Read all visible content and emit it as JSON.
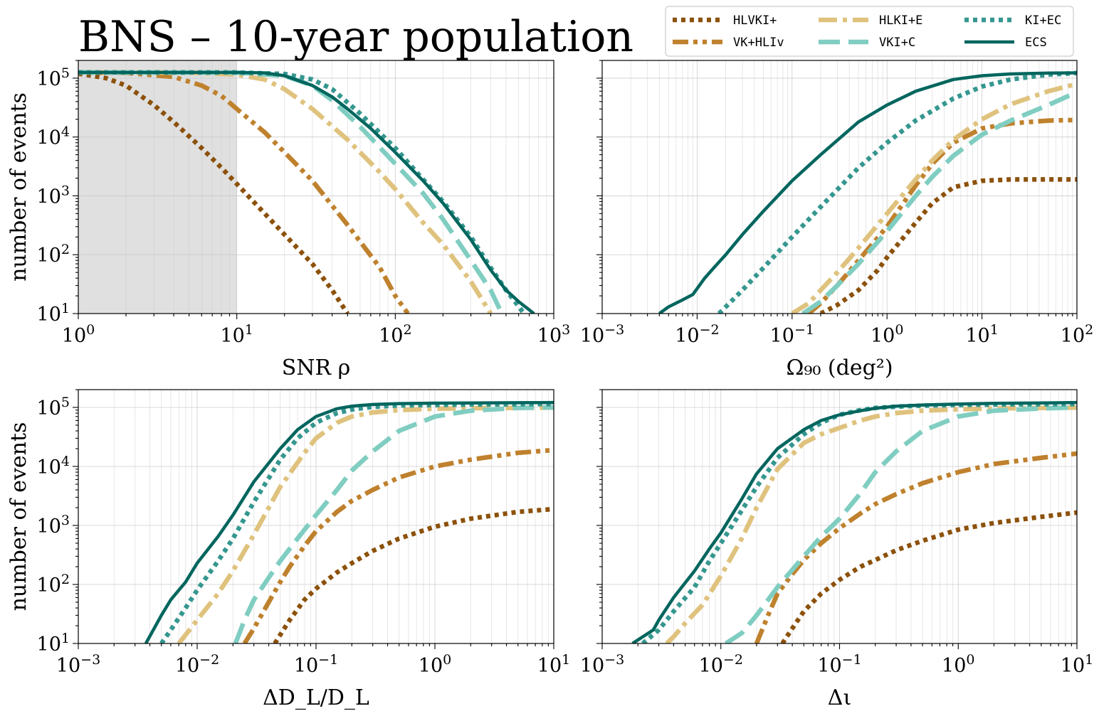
{
  "title": "BNS – 10-year population",
  "colors": {
    "HLVKI+": "#8c510a",
    "VK+HLIv": "#bf812d",
    "HLKI+E": "#dfc27d",
    "VKI+C": "#80cdc1",
    "KI+EC": "#35978f",
    "ECS": "#01665e"
  },
  "legend": [
    {
      "name": "HLVKI+",
      "color": "#8c510a",
      "style": "dotted"
    },
    {
      "name": "HLKI+E",
      "color": "#dfc27d",
      "style": "dashdot"
    },
    {
      "name": "KI+EC",
      "color": "#35978f",
      "style": "dotted"
    },
    {
      "name": "VK+HLIv",
      "color": "#bf812d",
      "style": "dashdotdot"
    },
    {
      "name": "VKI+C",
      "color": "#80cdc1",
      "style": "dashed"
    },
    {
      "name": "ECS",
      "color": "#01665e",
      "style": "solid"
    }
  ],
  "chart_data": [
    {
      "type": "line",
      "panel": "top-left",
      "xlabel": "SNR ρ",
      "ylabel": "number of events",
      "xscale": "log",
      "yscale": "log",
      "xlim": [
        1,
        1000
      ],
      "ylim": [
        10,
        200000
      ],
      "xticks": [
        "10^0",
        "10^1",
        "10^2",
        "10^3"
      ],
      "yticks": [
        "10^1",
        "10^2",
        "10^3",
        "10^4",
        "10^5"
      ],
      "shaded_region": {
        "x": [
          1,
          10
        ]
      },
      "grid": true,
      "series": [
        {
          "name": "HLVKI+",
          "x": [
            1,
            1.5,
            2,
            3,
            4,
            6,
            8,
            10,
            15,
            20,
            30,
            40,
            50
          ],
          "y": [
            120000,
            100000,
            75000,
            35000,
            18000,
            6500,
            3000,
            1600,
            500,
            220,
            70,
            25,
            10
          ]
        },
        {
          "name": "VK+HLIv",
          "x": [
            1,
            2,
            4,
            6,
            8,
            10,
            15,
            20,
            30,
            50,
            80,
            100,
            120
          ],
          "y": [
            125000,
            123000,
            105000,
            75000,
            50000,
            30000,
            12000,
            5500,
            1800,
            320,
            60,
            20,
            10
          ]
        },
        {
          "name": "HLKI+E",
          "x": [
            1,
            5,
            10,
            15,
            20,
            30,
            50,
            80,
            100,
            150,
            200,
            300,
            400
          ],
          "y": [
            125000,
            124000,
            115000,
            95000,
            65000,
            30000,
            9000,
            2500,
            1300,
            350,
            150,
            35,
            10
          ]
        },
        {
          "name": "VKI+C",
          "x": [
            1,
            10,
            20,
            30,
            40,
            60,
            100,
            150,
            200,
            300,
            400,
            470
          ],
          "y": [
            125000,
            124000,
            110000,
            75000,
            42000,
            15000,
            3500,
            1100,
            400,
            80,
            25,
            10
          ]
        },
        {
          "name": "KI+EC",
          "x": [
            1,
            10,
            20,
            30,
            40,
            60,
            100,
            150,
            200,
            300,
            400,
            500,
            650
          ],
          "y": [
            125000,
            125000,
            118000,
            95000,
            65000,
            25000,
            6500,
            1900,
            800,
            200,
            60,
            25,
            10
          ]
        },
        {
          "name": "ECS",
          "x": [
            1,
            10,
            15,
            20,
            30,
            40,
            50,
            70,
            100,
            150,
            200,
            300,
            400,
            500,
            600,
            750
          ],
          "y": [
            125000,
            125000,
            123000,
            110000,
            75000,
            48000,
            30000,
            14000,
            5500,
            1800,
            750,
            180,
            55,
            25,
            16,
            10
          ]
        }
      ]
    },
    {
      "type": "line",
      "panel": "top-right",
      "xlabel": "Ω₉₀ (deg²)",
      "ylabel": "",
      "xscale": "log",
      "yscale": "log",
      "xlim": [
        0.001,
        100
      ],
      "ylim": [
        10,
        200000
      ],
      "xticks": [
        "10^-3",
        "10^-2",
        "10^-1",
        "10^0",
        "10^1",
        "10^2"
      ],
      "grid": true,
      "series": [
        {
          "name": "HLVKI+",
          "x": [
            0.2,
            0.3,
            0.5,
            0.8,
            1,
            2,
            3,
            5,
            10,
            20,
            50,
            100
          ],
          "y": [
            10,
            14,
            25,
            55,
            90,
            350,
            750,
            1400,
            1800,
            1900,
            1900,
            1900
          ]
        },
        {
          "name": "VK+HLIv",
          "x": [
            0.15,
            0.2,
            0.3,
            0.5,
            1,
            2,
            3,
            5,
            10,
            20,
            50,
            100
          ],
          "y": [
            10,
            15,
            30,
            80,
            300,
            1500,
            3500,
            8000,
            14000,
            17000,
            19000,
            19500
          ]
        },
        {
          "name": "HLKI+E",
          "x": [
            0.1,
            0.15,
            0.2,
            0.3,
            0.5,
            1,
            2,
            3,
            5,
            10,
            20,
            50,
            100
          ],
          "y": [
            10,
            15,
            25,
            50,
            130,
            500,
            1900,
            4000,
            9000,
            20000,
            36000,
            60000,
            80000
          ]
        },
        {
          "name": "VKI+C",
          "x": [
            0.13,
            0.2,
            0.3,
            0.5,
            1,
            2,
            3,
            5,
            10,
            20,
            50,
            100
          ],
          "y": [
            10,
            16,
            30,
            70,
            250,
            1000,
            2100,
            4800,
            11000,
            19000,
            35000,
            58000
          ]
        },
        {
          "name": "KI+EC",
          "x": [
            0.017,
            0.02,
            0.03,
            0.05,
            0.1,
            0.2,
            0.5,
            1,
            2,
            5,
            10,
            20,
            50,
            100
          ],
          "y": [
            10,
            13,
            25,
            60,
            200,
            650,
            3000,
            8000,
            19000,
            45000,
            72000,
            95000,
            115000,
            122000
          ]
        },
        {
          "name": "ECS",
          "x": [
            0.004,
            0.005,
            0.007,
            0.009,
            0.012,
            0.015,
            0.02,
            0.03,
            0.05,
            0.1,
            0.2,
            0.5,
            1,
            2,
            5,
            10,
            20,
            50,
            100
          ],
          "y": [
            10,
            13,
            17,
            21,
            40,
            60,
            100,
            220,
            550,
            1800,
            5000,
            18000,
            35000,
            60000,
            95000,
            110000,
            118000,
            122000,
            123000
          ]
        }
      ]
    },
    {
      "type": "line",
      "panel": "bottom-left",
      "xlabel": "ΔD_L/D_L",
      "ylabel": "number of events",
      "xscale": "log",
      "yscale": "log",
      "xlim": [
        0.001,
        10
      ],
      "ylim": [
        10,
        200000
      ],
      "xticks": [
        "10^-3",
        "10^-2",
        "10^-1",
        "10^0",
        "10^1"
      ],
      "yticks": [
        "10^1",
        "10^2",
        "10^3",
        "10^4",
        "10^5"
      ],
      "grid": true,
      "series": [
        {
          "name": "HLVKI+",
          "x": [
            0.045,
            0.05,
            0.06,
            0.08,
            0.1,
            0.15,
            0.2,
            0.3,
            0.5,
            1,
            2,
            5,
            10
          ],
          "y": [
            10,
            14,
            25,
            55,
            85,
            160,
            230,
            370,
            600,
            950,
            1300,
            1700,
            1900
          ]
        },
        {
          "name": "VK+HLIv",
          "x": [
            0.025,
            0.03,
            0.04,
            0.05,
            0.06,
            0.08,
            0.1,
            0.15,
            0.2,
            0.3,
            0.5,
            1,
            2,
            5,
            10
          ],
          "y": [
            10,
            18,
            50,
            110,
            200,
            450,
            800,
            1700,
            2600,
            4000,
            6500,
            10000,
            13000,
            17000,
            19000
          ]
        },
        {
          "name": "HLKI+E",
          "x": [
            0.007,
            0.008,
            0.01,
            0.015,
            0.02,
            0.03,
            0.05,
            0.08,
            0.1,
            0.15,
            0.2,
            0.3,
            0.5,
            1,
            2,
            5,
            10
          ],
          "y": [
            10,
            14,
            25,
            70,
            170,
            700,
            4500,
            17000,
            30000,
            55000,
            70000,
            82000,
            90000,
            95000,
            97000,
            98000,
            99000
          ]
        },
        {
          "name": "VKI+C",
          "x": [
            0.021,
            0.025,
            0.03,
            0.04,
            0.05,
            0.07,
            0.1,
            0.15,
            0.2,
            0.3,
            0.5,
            1,
            2,
            5,
            10
          ],
          "y": [
            10,
            25,
            55,
            130,
            250,
            600,
            1500,
            4000,
            8500,
            18000,
            40000,
            70000,
            88000,
            98000,
            100000
          ]
        },
        {
          "name": "KI+EC",
          "x": [
            0.005,
            0.006,
            0.008,
            0.01,
            0.015,
            0.02,
            0.03,
            0.05,
            0.07,
            0.1,
            0.15,
            0.2,
            0.3,
            0.5,
            1,
            2,
            5,
            10
          ],
          "y": [
            10,
            17,
            40,
            80,
            250,
            600,
            2500,
            13000,
            30000,
            55000,
            80000,
            92000,
            102000,
            108000,
            110000,
            112000,
            113000,
            114000
          ]
        },
        {
          "name": "ECS",
          "x": [
            0.0037,
            0.005,
            0.006,
            0.008,
            0.01,
            0.015,
            0.02,
            0.03,
            0.05,
            0.07,
            0.1,
            0.15,
            0.2,
            0.3,
            0.5,
            1,
            2,
            5,
            10
          ],
          "y": [
            10,
            30,
            55,
            110,
            230,
            650,
            1500,
            5500,
            20000,
            42000,
            70000,
            95000,
            105000,
            112000,
            116000,
            118000,
            119000,
            120000,
            121000
          ]
        }
      ]
    },
    {
      "type": "line",
      "panel": "bottom-right",
      "xlabel": "Δι",
      "ylabel": "",
      "xscale": "log",
      "yscale": "log",
      "xlim": [
        0.001,
        10
      ],
      "ylim": [
        10,
        200000
      ],
      "xticks": [
        "10^-3",
        "10^-2",
        "10^-1",
        "10^0",
        "10^1"
      ],
      "grid": true,
      "series": [
        {
          "name": "HLVKI+",
          "x": [
            0.033,
            0.04,
            0.05,
            0.07,
            0.1,
            0.15,
            0.2,
            0.3,
            0.5,
            1,
            2,
            5,
            10
          ],
          "y": [
            10,
            18,
            35,
            70,
            120,
            200,
            260,
            380,
            550,
            850,
            1100,
            1400,
            1650
          ]
        },
        {
          "name": "VK+HLIv",
          "x": [
            0.02,
            0.025,
            0.03,
            0.04,
            0.05,
            0.07,
            0.1,
            0.15,
            0.2,
            0.3,
            0.5,
            1,
            2,
            5,
            10
          ],
          "y": [
            10,
            30,
            70,
            150,
            260,
            500,
            900,
            1600,
            2300,
            3400,
            5200,
            8000,
            11000,
            14000,
            16500
          ]
        },
        {
          "name": "HLKI+E",
          "x": [
            0.0035,
            0.004,
            0.005,
            0.007,
            0.01,
            0.015,
            0.02,
            0.03,
            0.05,
            0.07,
            0.1,
            0.15,
            0.2,
            0.3,
            0.5,
            1,
            2,
            5,
            10
          ],
          "y": [
            10,
            13,
            22,
            45,
            140,
            600,
            2000,
            9000,
            25000,
            35000,
            45000,
            60000,
            70000,
            80000,
            88000,
            93000,
            96000,
            98000,
            99000
          ]
        },
        {
          "name": "VKI+C",
          "x": [
            0.011,
            0.015,
            0.02,
            0.03,
            0.05,
            0.07,
            0.1,
            0.15,
            0.2,
            0.3,
            0.5,
            1,
            2,
            5,
            10
          ],
          "y": [
            10,
            15,
            30,
            90,
            300,
            650,
            1300,
            3500,
            8000,
            18000,
            40000,
            70000,
            88000,
            96000,
            100000
          ]
        },
        {
          "name": "KI+EC",
          "x": [
            0.0022,
            0.003,
            0.004,
            0.006,
            0.008,
            0.01,
            0.015,
            0.02,
            0.03,
            0.05,
            0.07,
            0.1,
            0.15,
            0.2,
            0.3,
            0.5,
            1,
            2,
            5,
            10
          ],
          "y": [
            10,
            17,
            35,
            90,
            250,
            500,
            1800,
            4500,
            14000,
            35000,
            55000,
            75000,
            90000,
            98000,
            103000,
            107000,
            110000,
            112000,
            113000,
            114000
          ]
        },
        {
          "name": "ECS",
          "x": [
            0.0018,
            0.0027,
            0.003,
            0.004,
            0.006,
            0.008,
            0.01,
            0.015,
            0.02,
            0.03,
            0.05,
            0.07,
            0.1,
            0.15,
            0.2,
            0.3,
            0.5,
            1,
            2,
            5,
            10
          ],
          "y": [
            10,
            17,
            25,
            60,
            170,
            400,
            750,
            2800,
            7500,
            20000,
            42000,
            60000,
            75000,
            88000,
            97000,
            105000,
            110000,
            114000,
            117000,
            119000,
            121000
          ]
        }
      ]
    }
  ]
}
